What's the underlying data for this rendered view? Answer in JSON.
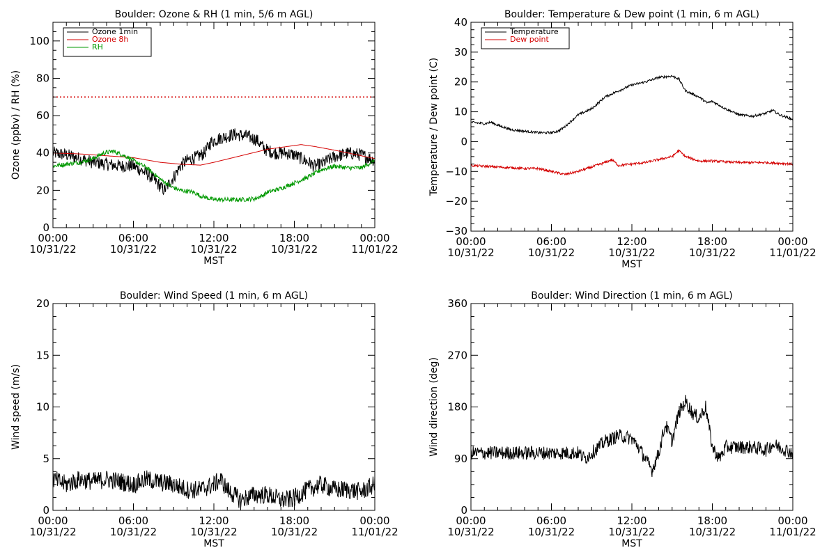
{
  "chart_data": [
    {
      "id": "ozone",
      "type": "line",
      "title": "Boulder: Ozone & RH (1 min, 5/6 m AGL)",
      "xlabel": "MST",
      "ylabel": "Ozone (ppbv) / RH (%)",
      "xlim": [
        0,
        24
      ],
      "ylim": [
        0,
        110
      ],
      "x_ticks": [
        {
          "t": 0,
          "time": "00:00",
          "date": "10/31/22"
        },
        {
          "t": 6,
          "time": "06:00",
          "date": "10/31/22"
        },
        {
          "t": 12,
          "time": "12:00",
          "date": "10/31/22"
        },
        {
          "t": 18,
          "time": "18:00",
          "date": "10/31/22"
        },
        {
          "t": 24,
          "time": "00:00",
          "date": "11/01/22"
        }
      ],
      "y_ticks": [
        {
          "v": 0,
          "label": "0"
        },
        {
          "v": 20,
          "label": "20"
        },
        {
          "v": 40,
          "label": "40"
        },
        {
          "v": 60,
          "label": "60"
        },
        {
          "v": 80,
          "label": "80"
        },
        {
          "v": 100,
          "label": "100"
        }
      ],
      "legend_position": "top-left",
      "reference_line": {
        "value": 70,
        "color": "#d40000",
        "style": "dotted"
      },
      "series": [
        {
          "name": "Ozone 1min",
          "color": "#000000",
          "noise": 3.5,
          "points": [
            [
              0,
              40
            ],
            [
              1,
              39
            ],
            [
              2,
              37
            ],
            [
              3,
              35
            ],
            [
              4,
              34
            ],
            [
              5,
              33
            ],
            [
              6,
              33
            ],
            [
              7,
              29
            ],
            [
              7.5,
              26
            ],
            [
              8,
              22
            ],
            [
              8.3,
              20
            ],
            [
              9,
              27
            ],
            [
              9.5,
              33
            ],
            [
              10,
              36
            ],
            [
              10.8,
              38
            ],
            [
              11.3,
              40
            ],
            [
              11.8,
              46
            ],
            [
              12.5,
              48
            ],
            [
              13.5,
              50
            ],
            [
              14.5,
              49
            ],
            [
              15.2,
              47
            ],
            [
              15.8,
              42
            ],
            [
              16.5,
              40
            ],
            [
              17.3,
              40
            ],
            [
              18,
              39
            ],
            [
              18.8,
              36
            ],
            [
              19.5,
              33
            ],
            [
              20,
              34
            ],
            [
              21,
              38
            ],
            [
              22,
              40
            ],
            [
              23,
              39
            ],
            [
              24,
              36
            ]
          ]
        },
        {
          "name": "Ozone 8h",
          "color": "#d40000",
          "noise": 0,
          "points": [
            [
              0,
              40
            ],
            [
              2,
              39.5
            ],
            [
              4,
              38.5
            ],
            [
              6,
              37.5
            ],
            [
              8,
              35
            ],
            [
              9.5,
              34
            ],
            [
              11,
              33.5
            ],
            [
              12,
              35
            ],
            [
              14,
              38.5
            ],
            [
              16,
              42
            ],
            [
              17.5,
              43.5
            ],
            [
              18.5,
              44.5
            ],
            [
              19.5,
              43.5
            ],
            [
              21,
              41.5
            ],
            [
              22,
              40
            ],
            [
              23,
              38.5
            ],
            [
              24,
              37
            ]
          ]
        },
        {
          "name": "RH",
          "color": "#009900",
          "noise": 1.2,
          "points": [
            [
              0,
              33
            ],
            [
              1,
              34
            ],
            [
              2,
              35
            ],
            [
              3,
              37
            ],
            [
              3.8,
              40
            ],
            [
              4.5,
              41
            ],
            [
              5.5,
              38
            ],
            [
              6,
              36
            ],
            [
              6.5,
              34
            ],
            [
              7,
              32
            ],
            [
              7.5,
              29
            ],
            [
              8,
              26
            ],
            [
              8.8,
              22
            ],
            [
              9.5,
              20
            ],
            [
              10.5,
              19
            ],
            [
              11,
              17
            ],
            [
              11.5,
              16
            ],
            [
              12,
              15
            ],
            [
              13,
              15
            ],
            [
              14,
              15
            ],
            [
              15,
              15.5
            ],
            [
              15.6,
              17
            ],
            [
              16,
              19
            ],
            [
              17,
              21
            ],
            [
              18,
              24
            ],
            [
              19,
              27
            ],
            [
              20,
              31
            ],
            [
              21,
              33
            ],
            [
              22,
              32
            ],
            [
              23,
              32
            ],
            [
              24,
              36
            ]
          ]
        }
      ]
    },
    {
      "id": "temperature",
      "type": "line",
      "title": "Boulder: Temperature & Dew point (1 min, 6 m AGL)",
      "xlabel": "MST",
      "ylabel": "Temperature / Dew point (C)",
      "xlim": [
        0,
        24
      ],
      "ylim": [
        -30,
        40
      ],
      "x_ticks": [
        {
          "t": 0,
          "time": "00:00",
          "date": "10/31/22"
        },
        {
          "t": 6,
          "time": "06:00",
          "date": "10/31/22"
        },
        {
          "t": 12,
          "time": "12:00",
          "date": "10/31/22"
        },
        {
          "t": 18,
          "time": "18:00",
          "date": "10/31/22"
        },
        {
          "t": 24,
          "time": "00:00",
          "date": "11/01/22"
        }
      ],
      "y_ticks": [
        {
          "v": -30,
          "label": "−30"
        },
        {
          "v": -20,
          "label": "−20"
        },
        {
          "v": -10,
          "label": "−10"
        },
        {
          "v": 0,
          "label": "0"
        },
        {
          "v": 10,
          "label": "10"
        },
        {
          "v": 20,
          "label": "20"
        },
        {
          "v": 30,
          "label": "30"
        },
        {
          "v": 40,
          "label": "40"
        }
      ],
      "legend_position": "top-left",
      "series": [
        {
          "name": "Temperature",
          "color": "#000000",
          "noise": 0.4,
          "points": [
            [
              0,
              6.5
            ],
            [
              1,
              6
            ],
            [
              1.5,
              6.5
            ],
            [
              2,
              5.5
            ],
            [
              3,
              4
            ],
            [
              4,
              3.5
            ],
            [
              5,
              3
            ],
            [
              6,
              3
            ],
            [
              6.5,
              3.5
            ],
            [
              7,
              5
            ],
            [
              8,
              9
            ],
            [
              9,
              11
            ],
            [
              10,
              15
            ],
            [
              11,
              17
            ],
            [
              12,
              19
            ],
            [
              13,
              20
            ],
            [
              14,
              21.5
            ],
            [
              15,
              22
            ],
            [
              15.5,
              21
            ],
            [
              16,
              17
            ],
            [
              17,
              15
            ],
            [
              17.6,
              13
            ],
            [
              18,
              13.5
            ],
            [
              19,
              11
            ],
            [
              20,
              9
            ],
            [
              21,
              8.5
            ],
            [
              22,
              9.5
            ],
            [
              22.5,
              10.5
            ],
            [
              23,
              9
            ],
            [
              24,
              7.5
            ]
          ]
        },
        {
          "name": "Dew point",
          "color": "#d40000",
          "noise": 0.4,
          "points": [
            [
              0,
              -8
            ],
            [
              2,
              -8.5
            ],
            [
              4,
              -9
            ],
            [
              5,
              -9
            ],
            [
              6,
              -10
            ],
            [
              7,
              -11
            ],
            [
              8,
              -10
            ],
            [
              9,
              -8.5
            ],
            [
              10,
              -7
            ],
            [
              10.5,
              -6
            ],
            [
              11,
              -8
            ],
            [
              12,
              -7.5
            ],
            [
              13,
              -7
            ],
            [
              14,
              -6
            ],
            [
              15,
              -5
            ],
            [
              15.5,
              -3
            ],
            [
              16,
              -5
            ],
            [
              17,
              -6.5
            ],
            [
              18,
              -6.5
            ],
            [
              20,
              -7
            ],
            [
              22,
              -7
            ],
            [
              24,
              -7.5
            ]
          ]
        }
      ]
    },
    {
      "id": "wind_speed",
      "type": "line",
      "title": "Boulder: Wind Speed (1 min, 6 m AGL)",
      "xlabel": "MST",
      "ylabel": "Wind speed (m/s)",
      "xlim": [
        0,
        24
      ],
      "ylim": [
        0,
        20
      ],
      "x_ticks": [
        {
          "t": 0,
          "time": "00:00",
          "date": "10/31/22"
        },
        {
          "t": 6,
          "time": "06:00",
          "date": "10/31/22"
        },
        {
          "t": 12,
          "time": "12:00",
          "date": "10/31/22"
        },
        {
          "t": 18,
          "time": "18:00",
          "date": "10/31/22"
        },
        {
          "t": 24,
          "time": "00:00",
          "date": "11/01/22"
        }
      ],
      "y_ticks": [
        {
          "v": 0,
          "label": "0"
        },
        {
          "v": 5,
          "label": "5"
        },
        {
          "v": 10,
          "label": "10"
        },
        {
          "v": 15,
          "label": "15"
        },
        {
          "v": 20,
          "label": "20"
        }
      ],
      "series": [
        {
          "name": "",
          "color": "#000000",
          "noise": 0.9,
          "points": [
            [
              0,
              3
            ],
            [
              1,
              2.5
            ],
            [
              2,
              3
            ],
            [
              3,
              2.8
            ],
            [
              4,
              3
            ],
            [
              5,
              2.8
            ],
            [
              6,
              2.5
            ],
            [
              7,
              3
            ],
            [
              8,
              2.7
            ],
            [
              9,
              2.5
            ],
            [
              10,
              2
            ],
            [
              11,
              2
            ],
            [
              12,
              2.5
            ],
            [
              12.5,
              3
            ],
            [
              13,
              2
            ],
            [
              14,
              1
            ],
            [
              15,
              1.5
            ],
            [
              16,
              1.5
            ],
            [
              17,
              1
            ],
            [
              17.5,
              1
            ],
            [
              18,
              1.2
            ],
            [
              19,
              2
            ],
            [
              20,
              2.5
            ],
            [
              21,
              2
            ],
            [
              22,
              2
            ],
            [
              23,
              1.8
            ],
            [
              24,
              2.5
            ]
          ]
        }
      ]
    },
    {
      "id": "wind_direction",
      "type": "line",
      "title": "Boulder: Wind Direction (1 min, 6 m AGL)",
      "xlabel": "MST",
      "ylabel": "Wind direction (deg)",
      "xlim": [
        0,
        24
      ],
      "ylim": [
        0,
        360
      ],
      "x_ticks": [
        {
          "t": 0,
          "time": "00:00",
          "date": "10/31/22"
        },
        {
          "t": 6,
          "time": "06:00",
          "date": "10/31/22"
        },
        {
          "t": 12,
          "time": "12:00",
          "date": "10/31/22"
        },
        {
          "t": 18,
          "time": "18:00",
          "date": "10/31/22"
        },
        {
          "t": 24,
          "time": "00:00",
          "date": "11/01/22"
        }
      ],
      "y_ticks": [
        {
          "v": 0,
          "label": "0"
        },
        {
          "v": 90,
          "label": "90"
        },
        {
          "v": 180,
          "label": "180"
        },
        {
          "v": 270,
          "label": "270"
        },
        {
          "v": 360,
          "label": "360"
        }
      ],
      "series": [
        {
          "name": "",
          "color": "#000000",
          "noise": 12,
          "points": [
            [
              0,
              100
            ],
            [
              2,
              100
            ],
            [
              4,
              100
            ],
            [
              6,
              100
            ],
            [
              7,
              100
            ],
            [
              8,
              100
            ],
            [
              8.5,
              90
            ],
            [
              9,
              100
            ],
            [
              9.5,
              110
            ],
            [
              10,
              120
            ],
            [
              11,
              130
            ],
            [
              12,
              125
            ],
            [
              12.5,
              110
            ],
            [
              13,
              90
            ],
            [
              13.5,
              70
            ],
            [
              14,
              100
            ],
            [
              14.5,
              150
            ],
            [
              15,
              120
            ],
            [
              15.5,
              170
            ],
            [
              16,
              190
            ],
            [
              16.5,
              170
            ],
            [
              17,
              160
            ],
            [
              17.5,
              180
            ],
            [
              18,
              110
            ],
            [
              18.5,
              90
            ],
            [
              19,
              110
            ],
            [
              20,
              110
            ],
            [
              21,
              110
            ],
            [
              22,
              105
            ],
            [
              22.5,
              115
            ],
            [
              23,
              110
            ],
            [
              24,
              100
            ]
          ]
        }
      ]
    }
  ]
}
